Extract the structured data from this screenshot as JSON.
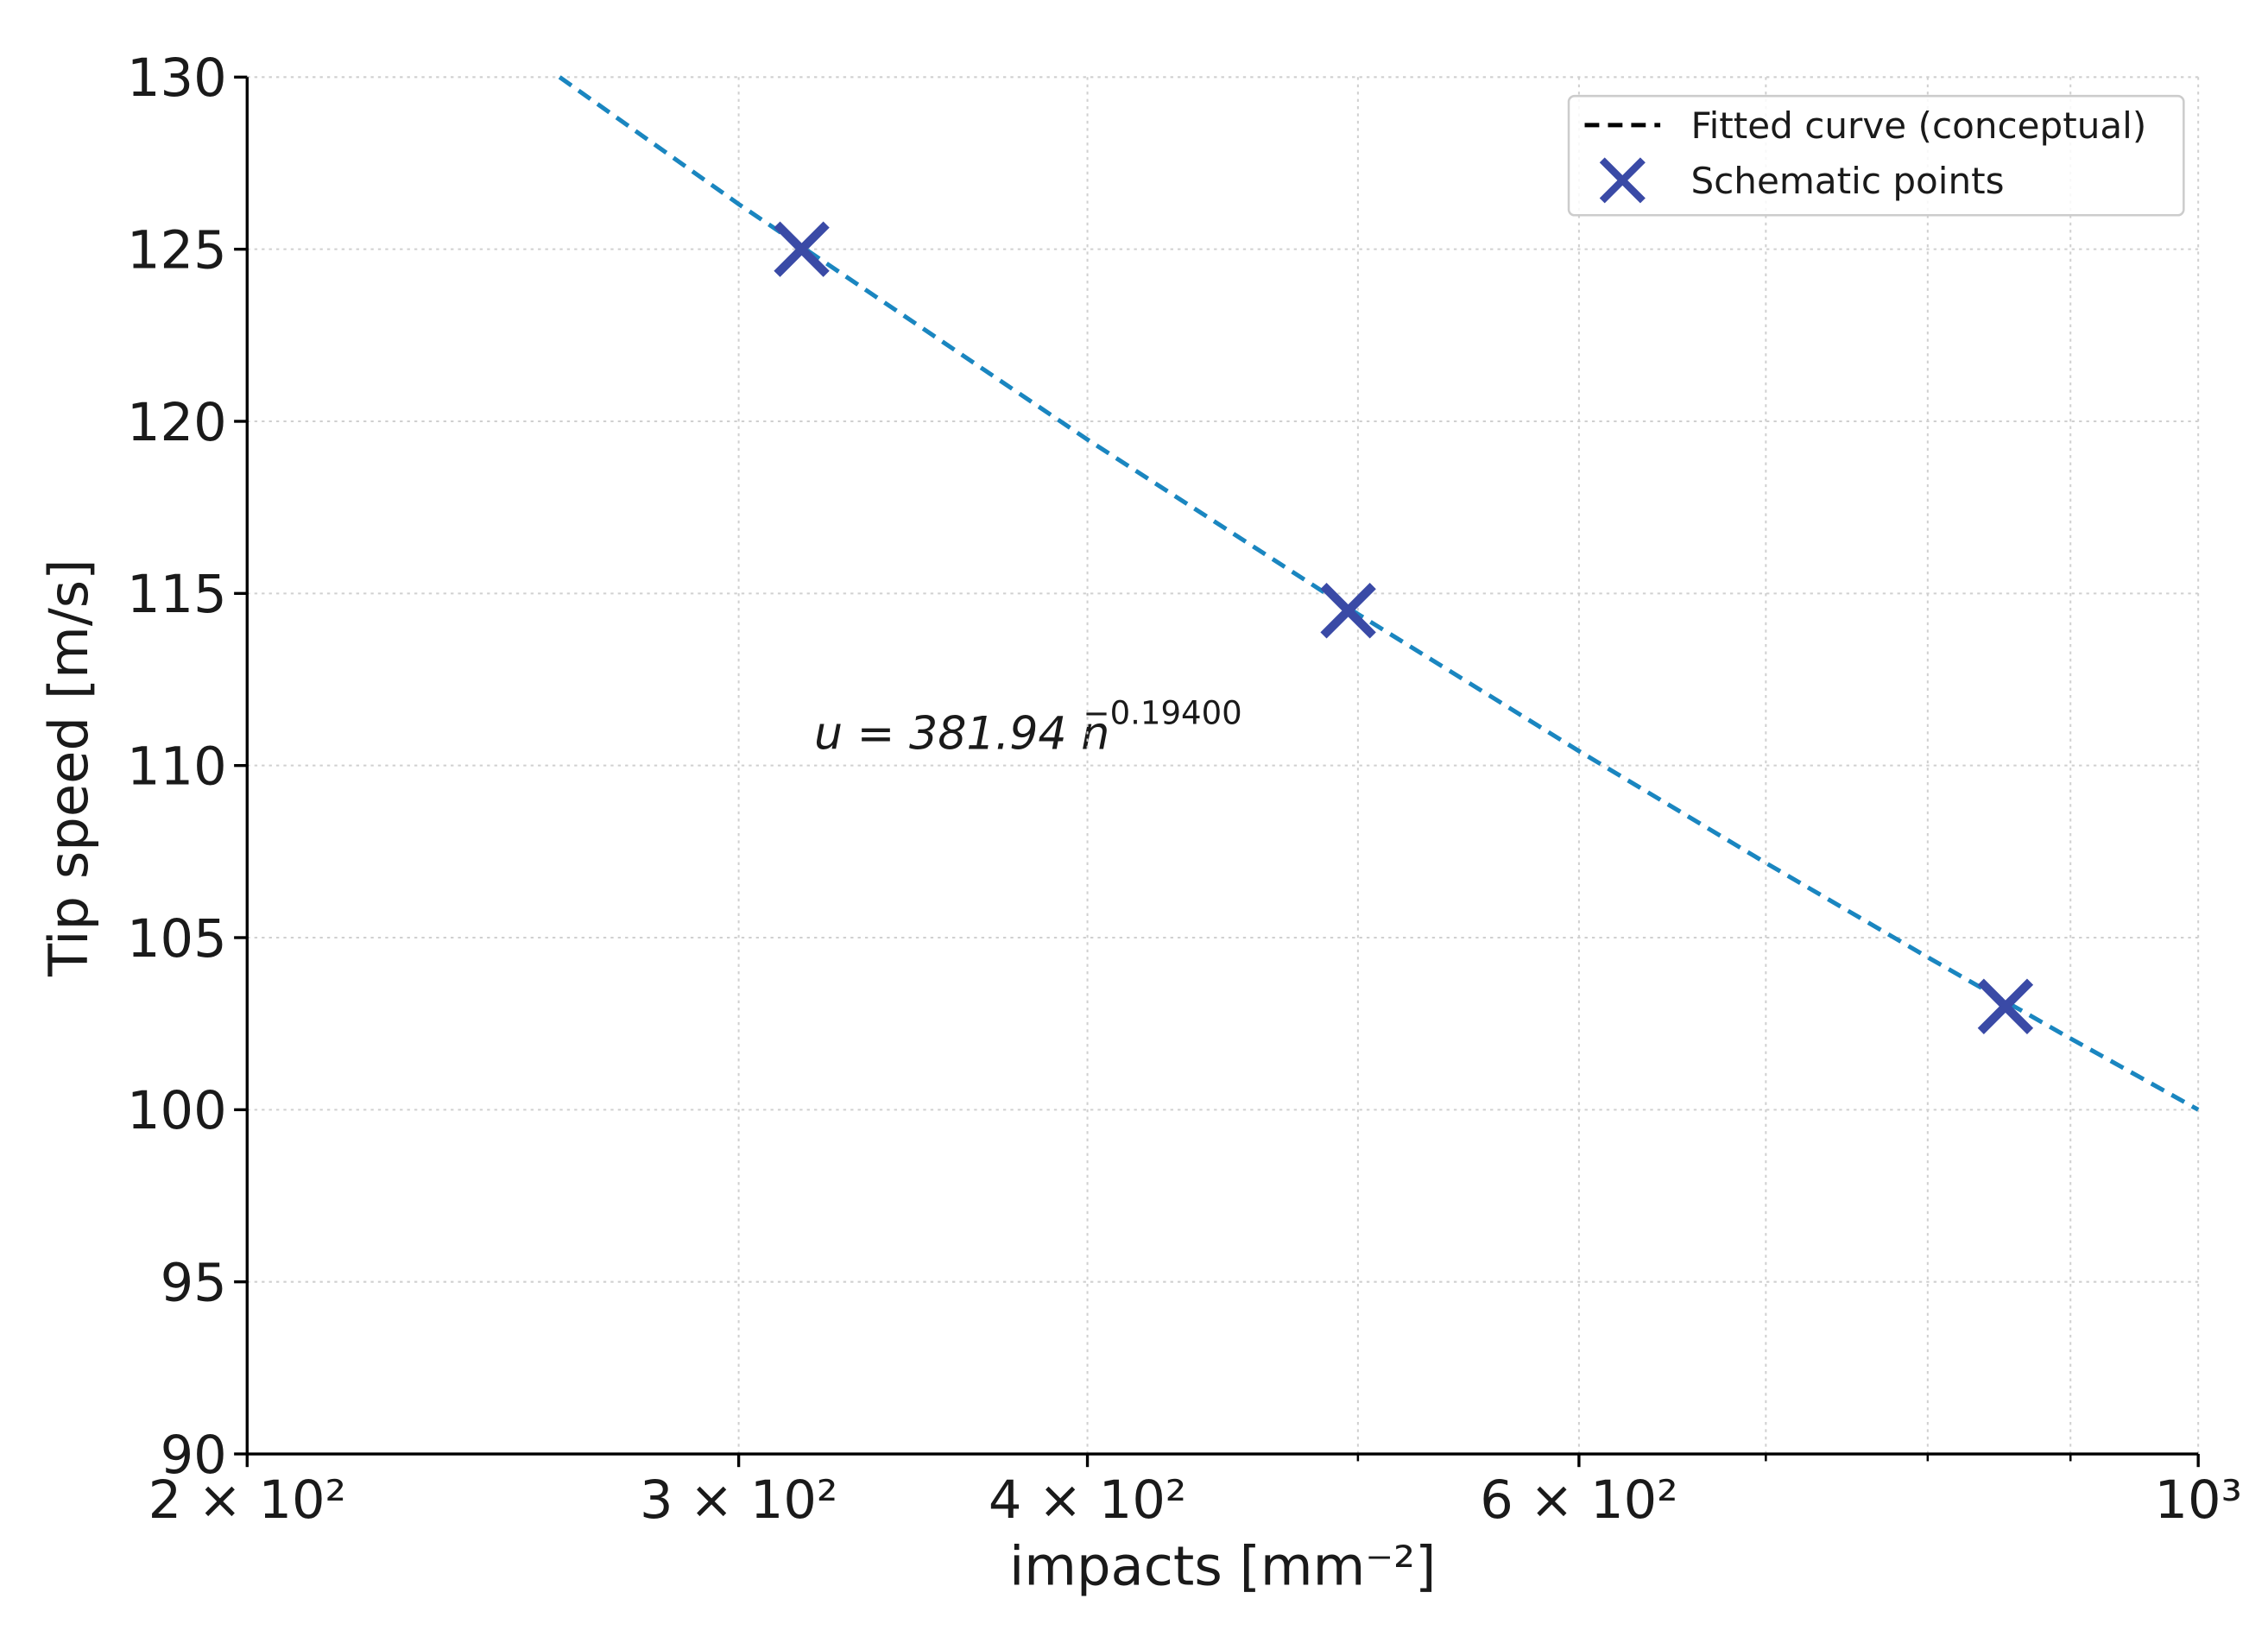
{
  "chart_data": {
    "type": "line",
    "xlabel": "impacts [mm⁻²]",
    "ylabel": "Tip speed [m/s]",
    "xscale": "log",
    "xlim": [
      200,
      1000
    ],
    "ylim": [
      90,
      130
    ],
    "xticks": [
      {
        "value": 200,
        "label": "2 × 10²"
      },
      {
        "value": 300,
        "label": "3 × 10²"
      },
      {
        "value": 400,
        "label": "4 × 10²"
      },
      {
        "value": 600,
        "label": "6 × 10²"
      },
      {
        "value": 1000,
        "label": "10³"
      }
    ],
    "xticks_minor": [
      500,
      700,
      800,
      900
    ],
    "yticks": [
      90,
      95,
      100,
      105,
      110,
      115,
      120,
      125,
      130
    ],
    "grid": true,
    "legend": "upper right",
    "annotation": {
      "text": "u = 381.94 n",
      "exponent": "−0.19400"
    },
    "series": [
      {
        "name": "Fitted curve (conceptual)",
        "color": "#1a86c0",
        "style": "dashed",
        "x": [
          258.8,
          300,
          400,
          500,
          600,
          700,
          800,
          900,
          1000
        ],
        "values": [
          130.0,
          126.31,
          119.47,
          114.4,
          110.42,
          107.17,
          104.43,
          102.07,
          100.0
        ]
      },
      {
        "name": "Schematic points",
        "color": "#3a4aa6",
        "style": "marker",
        "x": [
          316,
          496,
          853
        ],
        "values": [
          125,
          114.5,
          103
        ]
      }
    ]
  }
}
